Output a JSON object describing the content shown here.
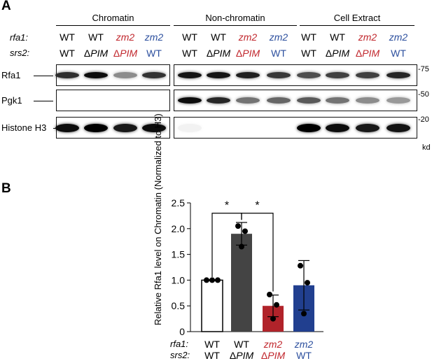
{
  "colors": {
    "red": "#c1272d",
    "blue": "#2c4f9e",
    "dark_bar": "#444444",
    "blue_bar": "#213f8f"
  },
  "panel_a": {
    "letter": "A",
    "groups": [
      "Chromatin",
      "Non-chromatin",
      "Cell Extract"
    ],
    "row1_label": "rfa1:",
    "row2_label": "srs2:",
    "delta": "Δ",
    "lanes": [
      {
        "rfa1": "WT",
        "srs2_pre": "",
        "srs2": "WT",
        "color": "black"
      },
      {
        "rfa1": "WT",
        "srs2_pre": "Δ",
        "srs2": "PIM",
        "color": "black"
      },
      {
        "rfa1": "zm2",
        "srs2_pre": "Δ",
        "srs2": "PIM",
        "color": "red"
      },
      {
        "rfa1": "zm2",
        "srs2_pre": "",
        "srs2": "WT",
        "color": "blue"
      },
      {
        "rfa1": "WT",
        "srs2_pre": "",
        "srs2": "WT",
        "color": "black"
      },
      {
        "rfa1": "WT",
        "srs2_pre": "Δ",
        "srs2": "PIM",
        "color": "black"
      },
      {
        "rfa1": "zm2",
        "srs2_pre": "Δ",
        "srs2": "PIM",
        "color": "red"
      },
      {
        "rfa1": "zm2",
        "srs2_pre": "",
        "srs2": "WT",
        "color": "blue"
      },
      {
        "rfa1": "WT",
        "srs2_pre": "",
        "srs2": "WT",
        "color": "black"
      },
      {
        "rfa1": "WT",
        "srs2_pre": "Δ",
        "srs2": "PIM",
        "color": "black"
      },
      {
        "rfa1": "zm2",
        "srs2_pre": "Δ",
        "srs2": "PIM",
        "color": "red"
      },
      {
        "rfa1": "zm2",
        "srs2_pre": "",
        "srs2": "WT",
        "color": "blue"
      }
    ],
    "blots": [
      {
        "protein": "Rfa1",
        "marker": "75",
        "intensity": [
          0.82,
          0.95,
          0.45,
          0.8,
          0.92,
          0.92,
          0.88,
          0.78,
          0.7,
          0.75,
          0.75,
          0.85
        ]
      },
      {
        "protein": "Pgk1",
        "marker": "50",
        "intensity": [
          0,
          0,
          0,
          0,
          0.95,
          0.85,
          0.55,
          0.6,
          0.65,
          0.55,
          0.45,
          0.4
        ]
      },
      {
        "protein": "Histone H3",
        "marker": "20",
        "intensity": [
          0.95,
          1.0,
          0.9,
          0.95,
          0.05,
          0,
          0,
          0,
          1.0,
          0.95,
          0.9,
          0.92
        ]
      }
    ],
    "kd_label": "kd"
  },
  "panel_b": {
    "letter": "B",
    "row1_label": "rfa1:",
    "row2_label": "srs2:",
    "significance_marks": [
      "*",
      "*"
    ]
  },
  "chart_data": {
    "type": "bar",
    "ylabel": "Relative Rfa1 level on Chromatin (Normalized to H3)",
    "ylim": [
      0,
      2.5
    ],
    "yticks": [
      "0",
      "0.5",
      "1.0",
      "1.5",
      "2.0",
      "2.5"
    ],
    "categories": [
      {
        "rfa1": "WT",
        "srs2_pre": "",
        "srs2": "WT",
        "color": "black"
      },
      {
        "rfa1": "WT",
        "srs2_pre": "Δ",
        "srs2": "PIM",
        "color": "black"
      },
      {
        "rfa1": "zm2",
        "srs2_pre": "Δ",
        "srs2": "PIM",
        "color": "red"
      },
      {
        "rfa1": "zm2",
        "srs2_pre": "",
        "srs2": "WT",
        "color": "blue"
      }
    ],
    "values": [
      1.0,
      1.9,
      0.5,
      0.9
    ],
    "errors": [
      0.01,
      0.22,
      0.21,
      0.48
    ],
    "bar_fills": [
      "#ffffff",
      "#444444",
      "#b1232a",
      "#213f8f"
    ],
    "points": [
      [
        1.0,
        1.0,
        1.0
      ],
      [
        2.05,
        1.95,
        1.65
      ],
      [
        0.72,
        0.52,
        0.25
      ],
      [
        1.28,
        0.95,
        0.35
      ]
    ]
  }
}
